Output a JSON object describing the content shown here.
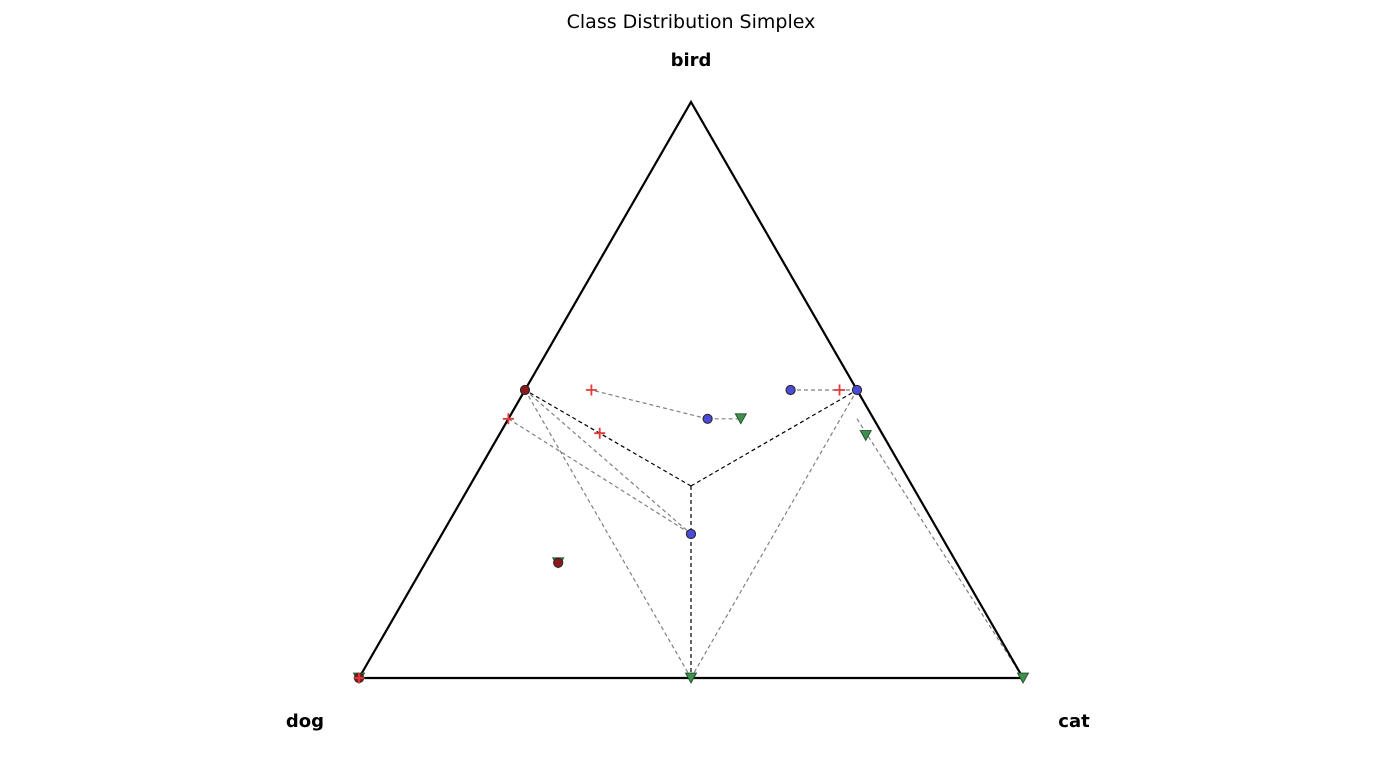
{
  "chart_data": {
    "type": "scatter",
    "title": "Class Distribution Simplex",
    "vertices": [
      "dog",
      "cat",
      "bird"
    ],
    "colors": {
      "frame": "#000000",
      "connector": "#808080",
      "circle_fill": "#4b4bd6",
      "triangle_fill": "#3f8f4f",
      "plus_color": "#e03a3a",
      "dark_red": "#8b1a1a"
    },
    "boundaries": [
      {
        "from": [
          0.333,
          0.333,
          0.333
        ],
        "to": [
          0.5,
          0.0,
          0.5
        ]
      },
      {
        "from": [
          0.333,
          0.333,
          0.333
        ],
        "to": [
          0.0,
          0.5,
          0.5
        ]
      },
      {
        "from": [
          0.333,
          0.333,
          0.333
        ],
        "to": [
          0.5,
          0.5,
          0.0
        ]
      }
    ],
    "connectors": [
      {
        "from": [
          0.5,
          0.0,
          0.5
        ],
        "to": [
          0.375,
          0.375,
          0.25
        ]
      },
      {
        "from": [
          0.5,
          0.0,
          0.5
        ],
        "to": [
          0.5,
          0.5,
          0.0
        ]
      },
      {
        "from": [
          0.0,
          0.5,
          0.5
        ],
        "to": [
          0.0,
          1.0,
          0.0
        ]
      },
      {
        "from": [
          0.0,
          0.5,
          0.5
        ],
        "to": [
          0.5,
          0.5,
          0.0
        ]
      },
      {
        "from": [
          0.0,
          0.5,
          0.5
        ],
        "to": [
          0.1,
          0.4,
          0.5
        ]
      },
      {
        "from": [
          0.25,
          0.3,
          0.45
        ],
        "to": [
          0.2,
          0.35,
          0.45
        ]
      },
      {
        "from": [
          0.25,
          0.3,
          0.45
        ],
        "to": [
          0.4,
          0.1,
          0.5
        ]
      },
      {
        "from": [
          0.025,
          0.525,
          0.45
        ],
        "to": [
          0.0,
          1.0,
          0.0
        ]
      },
      {
        "from": [
          0.55,
          0.0,
          0.45
        ],
        "to": [
          0.375,
          0.375,
          0.25
        ]
      }
    ],
    "points": [
      {
        "marker": "triangle",
        "p": [
          1.0,
          0.0,
          0.0
        ]
      },
      {
        "marker": "circle-dark",
        "p": [
          1.0,
          0.0,
          0.0
        ]
      },
      {
        "marker": "triangle",
        "p": [
          0.5,
          0.5,
          0.0
        ]
      },
      {
        "marker": "triangle",
        "p": [
          0.0,
          1.0,
          0.0
        ]
      },
      {
        "marker": "triangle",
        "p": [
          0.6,
          0.2,
          0.2
        ]
      },
      {
        "marker": "circle-dark",
        "p": [
          0.6,
          0.2,
          0.2
        ]
      },
      {
        "marker": "circle-dark",
        "p": [
          0.5,
          0.0,
          0.5
        ]
      },
      {
        "marker": "circle",
        "p": [
          0.375,
          0.375,
          0.25
        ]
      },
      {
        "marker": "circle",
        "p": [
          0.25,
          0.3,
          0.45
        ]
      },
      {
        "marker": "circle",
        "p": [
          0.1,
          0.4,
          0.5
        ]
      },
      {
        "marker": "circle",
        "p": [
          0.0,
          0.5,
          0.5
        ]
      },
      {
        "marker": "triangle",
        "p": [
          0.2,
          0.35,
          0.45
        ]
      },
      {
        "marker": "triangle",
        "p": [
          0.025,
          0.525,
          0.4
        ]
      },
      {
        "marker": "plus",
        "p": [
          0.4,
          0.1,
          0.5
        ]
      },
      {
        "marker": "plus",
        "p": [
          0.55,
          0.0,
          0.45
        ]
      },
      {
        "marker": "plus",
        "p": [
          0.425,
          0.15,
          0.425
        ]
      },
      {
        "marker": "plus",
        "p": [
          0.025,
          0.45,
          0.475
        ]
      },
      {
        "marker": "plus",
        "p": [
          1.0,
          0.0,
          0.0
        ]
      }
    ]
  }
}
